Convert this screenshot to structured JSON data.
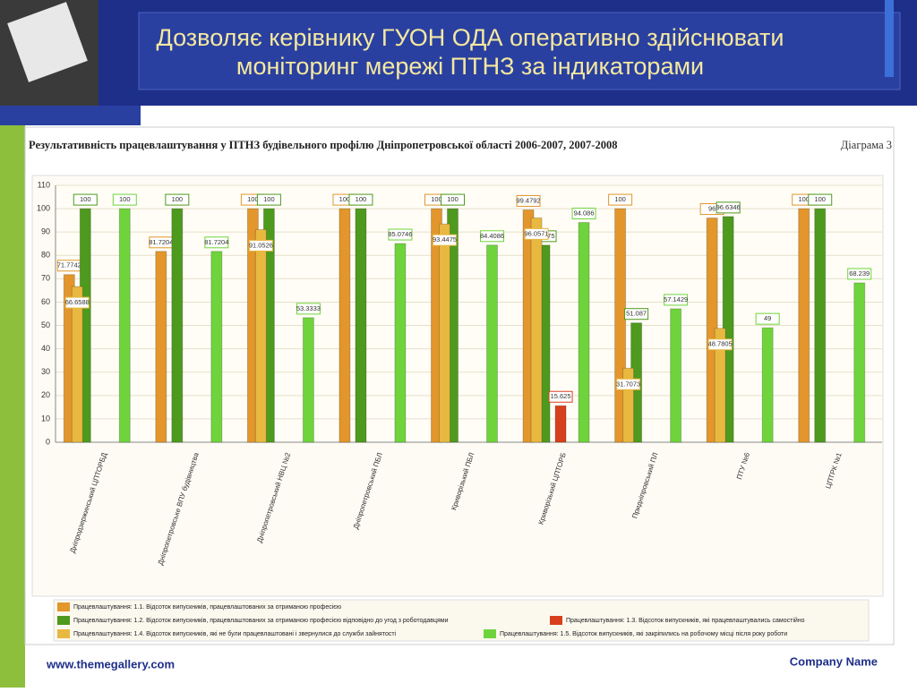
{
  "slide": {
    "title_line1": "Дозволяє керівнику ГУОН ОДА оперативно здійснювати",
    "title_line2": "моніторинг мережі ПТНЗ за індикаторами",
    "website": "www.themegallery.com",
    "company": "Company Name"
  },
  "chart_data": {
    "type": "bar",
    "title": "Результативність працевлаштування у ПТНЗ будівельного профілю   Дніпропетровської області 2006-2007, 2007-2008",
    "subtitle": "Діаграма 3",
    "categories": [
      "Дніпродзержинський ЦПТОРБД",
      "Дніпропетровське ВПУ будівництва",
      "Дніпропетровський НВЦ №2",
      "Дніпропетровський ПБЛ",
      "Криворізький ПБЛ",
      "Криворізький ЦПТОРБ",
      "Придніпровський ПЛ",
      "ПТУ №6",
      "ЦПТРК №1"
    ],
    "series": [
      {
        "name": "Працевлаштування: 1.1. Відсоток випускників, працевлаштованих за отриманою професією",
        "color": "#e3962c",
        "values": [
          71.7742,
          81.7204,
          100,
          100,
          100,
          99.4792,
          100,
          96,
          100
        ]
      },
      {
        "name": "Працевлаштування: 1.2. Відсоток випускників, працевлаштованих за отриманою професією відповідно до угод з роботодавцями",
        "color": "#4e9a1e",
        "values": [
          100,
          100,
          100,
          100,
          100,
          84.375,
          51.087,
          96.6346,
          100
        ]
      },
      {
        "name": "Працевлаштування: 1.3. Відсоток випускників, які працевлаштувались самостійно",
        "color": "#d7401c",
        "values": [
          null,
          null,
          null,
          null,
          null,
          15.625,
          null,
          null,
          null
        ]
      },
      {
        "name": "Працевлаштування: 1.4. Відсоток випускників, які не були працевлаштовані і звернулися до служби зайнятості",
        "color": "#e8b840",
        "values": [
          66.6588,
          null,
          91.0526,
          null,
          93.4475,
          96.0571,
          31.7073,
          48.7805,
          null
        ]
      },
      {
        "name": "Працевлаштування: 1.5. Відсоток випускників, які закріпились на робочому місці після року роботи",
        "color": "#6fd43c",
        "values": [
          100,
          81.7204,
          53.3333,
          85.0746,
          84.4086,
          94.086,
          57.1429,
          49,
          68.239
        ]
      }
    ],
    "ylim": [
      0,
      110
    ],
    "yticks": [
      0,
      10,
      20,
      30,
      40,
      50,
      60,
      70,
      80,
      90,
      100,
      110
    ],
    "grid": true
  }
}
